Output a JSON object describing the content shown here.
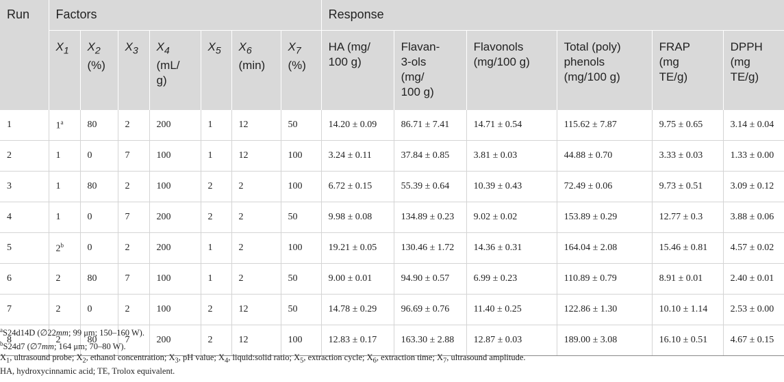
{
  "header": {
    "run": "Run",
    "factors": "Factors",
    "response": "Response"
  },
  "columns": {
    "x1": "X1",
    "x2": "X2 (%)",
    "x3": "X3",
    "x4": "X4 (mL/g)",
    "x5": "X5",
    "x6": "X6 (min)",
    "x7": "X7 (%)",
    "ha": "HA (mg/ 100 g)",
    "flavanols": "Flavan-3-ols (mg/ 100 g)",
    "flavonols": "Flavonols (mg/100 g)",
    "total": "Total (poly) phenols (mg/100 g)",
    "frap": "FRAP (mg TE/g)",
    "dpph": "DPPH (mg TE/g)"
  },
  "rows": [
    {
      "run": "1",
      "x1": "1",
      "x1_sup": "a",
      "x2": "80",
      "x3": "2",
      "x4": "200",
      "x5": "1",
      "x6": "12",
      "x7": "50",
      "ha": "14.20 ± 0.09",
      "flavanols": "86.71 ± 7.41",
      "flavonols": "14.71 ± 0.54",
      "total": "115.62 ± 7.87",
      "frap": "9.75 ± 0.65",
      "dpph": "3.14 ± 0.04"
    },
    {
      "run": "2",
      "x1": "1",
      "x1_sup": "",
      "x2": "0",
      "x3": "7",
      "x4": "100",
      "x5": "1",
      "x6": "12",
      "x7": "100",
      "ha": "3.24 ± 0.11",
      "flavanols": "37.84 ± 0.85",
      "flavonols": "3.81 ± 0.03",
      "total": "44.88 ± 0.70",
      "frap": "3.33 ± 0.03",
      "dpph": "1.33 ± 0.00"
    },
    {
      "run": "3",
      "x1": "1",
      "x1_sup": "",
      "x2": "80",
      "x3": "2",
      "x4": "100",
      "x5": "2",
      "x6": "2",
      "x7": "100",
      "ha": "6.72 ± 0.15",
      "flavanols": "55.39 ± 0.64",
      "flavonols": "10.39 ± 0.43",
      "total": "72.49 ± 0.06",
      "frap": "9.73 ± 0.51",
      "dpph": "3.09 ± 0.12"
    },
    {
      "run": "4",
      "x1": "1",
      "x1_sup": "",
      "x2": "0",
      "x3": "7",
      "x4": "200",
      "x5": "2",
      "x6": "2",
      "x7": "50",
      "ha": "9.98 ± 0.08",
      "flavanols": "134.89 ± 0.23",
      "flavonols": "9.02 ± 0.02",
      "total": "153.89 ± 0.29",
      "frap": "12.77 ± 0.3",
      "dpph": "3.88 ± 0.06"
    },
    {
      "run": "5",
      "x1": "2",
      "x1_sup": "b",
      "x2": "0",
      "x3": "2",
      "x4": "200",
      "x5": "1",
      "x6": "2",
      "x7": "100",
      "ha": "19.21 ± 0.05",
      "flavanols": "130.46 ± 1.72",
      "flavonols": "14.36 ± 0.31",
      "total": "164.04 ± 2.08",
      "frap": "15.46 ± 0.81",
      "dpph": "4.57 ± 0.02"
    },
    {
      "run": "6",
      "x1": "2",
      "x1_sup": "",
      "x2": "80",
      "x3": "7",
      "x4": "100",
      "x5": "1",
      "x6": "2",
      "x7": "50",
      "ha": "9.00 ± 0.01",
      "flavanols": "94.90 ± 0.57",
      "flavonols": "6.99 ± 0.23",
      "total": "110.89 ± 0.79",
      "frap": "8.91 ± 0.01",
      "dpph": "2.40 ± 0.01"
    },
    {
      "run": "7",
      "x1": "2",
      "x1_sup": "",
      "x2": "0",
      "x3": "2",
      "x4": "100",
      "x5": "2",
      "x6": "12",
      "x7": "50",
      "ha": "14.78 ± 0.29",
      "flavanols": "96.69 ± 0.76",
      "flavonols": "11.40 ± 0.25",
      "total": "122.86 ± 1.30",
      "frap": "10.10 ± 1.14",
      "dpph": "2.53 ± 0.00"
    },
    {
      "run": "8",
      "x1": "2",
      "x1_sup": "",
      "x2": "80",
      "x3": "7",
      "x4": "200",
      "x5": "2",
      "x6": "12",
      "x7": "100",
      "ha": "12.83 ± 0.17",
      "flavanols": "163.30 ± 2.88",
      "flavonols": "12.87 ± 0.03",
      "total": "189.00 ± 3.08",
      "frap": "16.10 ± 0.51",
      "dpph": "4.67 ± 0.15"
    }
  ],
  "footnotes": {
    "a": "aS24d14D (∅22mm; 99 μm; 150–160 W).",
    "b": "bS24d7 (∅7mm; 164 μm; 70–80 W).",
    "factors": "X1, ultrasound probe; X2, ethanol concentration; X3, pH value; X4, liquid:solid ratio; X5, extraction cycle; X6, extraction time; X7, ultrasound amplitude.",
    "abbrev": "HA, hydroxycinnamic acid; TE, Trolox equivalent."
  }
}
